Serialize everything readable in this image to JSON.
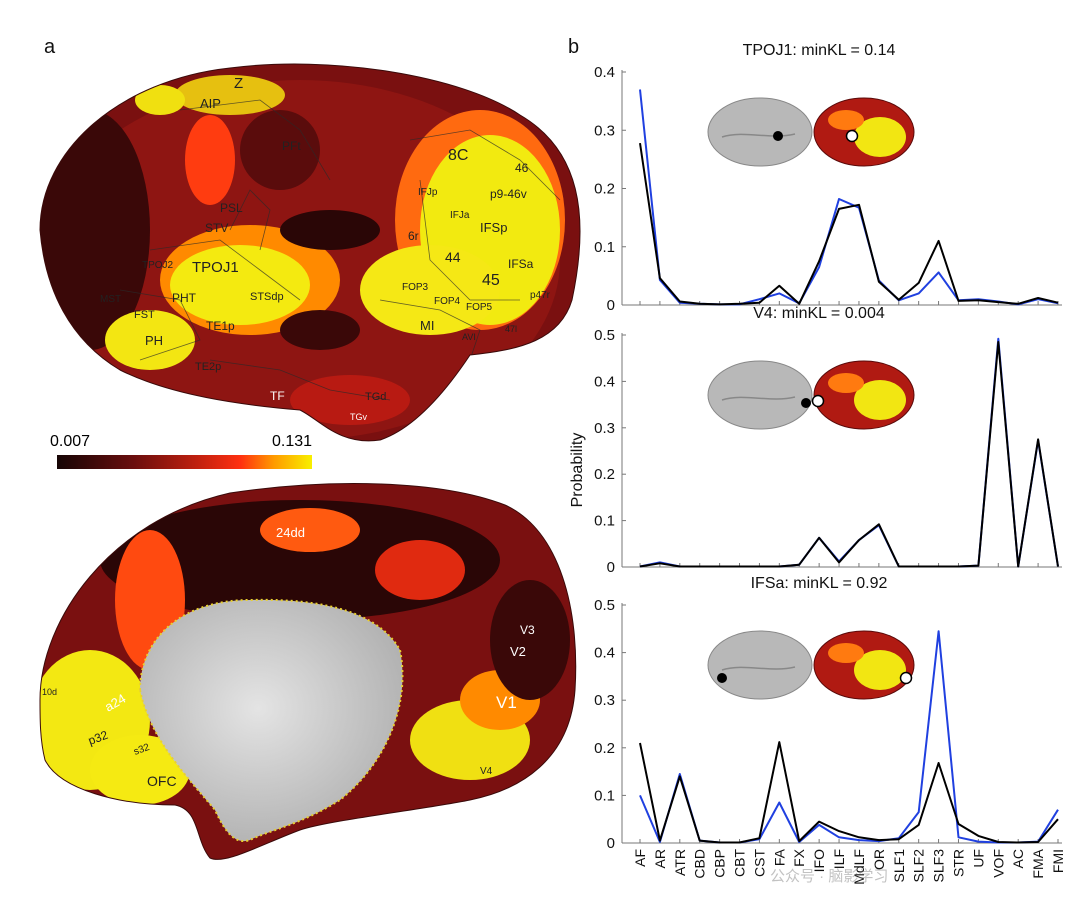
{
  "panel_labels": {
    "a": "a",
    "b": "b"
  },
  "colorbar": {
    "min_label": "0.007",
    "max_label": "0.131",
    "colors": [
      "#160505",
      "#5a0d0d",
      "#a01515",
      "#e02a10",
      "#ff8a00",
      "#ffe000",
      "#f7f000"
    ]
  },
  "lateral_regions": [
    "Z",
    "AIP",
    "PFt",
    "8C",
    "46",
    "p9-46v",
    "IFJp",
    "IFJa",
    "IFSp",
    "6r",
    "PSL",
    "STV",
    "TPOJ1",
    "TPOJ2",
    "44",
    "45",
    "IFSa",
    "MST",
    "FST",
    "PHT",
    "STSdp",
    "FOP3",
    "FOP4",
    "FOP5",
    "MI",
    "p47r",
    "47l",
    "AVI",
    "TE1p",
    "PH",
    "TE2p",
    "TF",
    "TGd",
    "TGv"
  ],
  "medial_regions": [
    "24dd",
    "V3",
    "V2",
    "V1",
    "a24",
    "p32",
    "s32",
    "OFC",
    "V4",
    "10d"
  ],
  "watermark": "公众号 · 脑影学习",
  "ylabel": "Probability",
  "tracts": [
    "AF",
    "AR",
    "ATR",
    "CBD",
    "CBP",
    "CBT",
    "CST",
    "FA",
    "FX",
    "IFO",
    "ILF",
    "MdLF",
    "OR",
    "SLF1",
    "SLF2",
    "SLF3",
    "STR",
    "UF",
    "VOF",
    "AC",
    "FMA",
    "FMI"
  ],
  "chart_data": [
    {
      "type": "line",
      "title": "TPOJ1: minKL = 0.14",
      "ylim": [
        0,
        0.4
      ],
      "yticks": [
        "0",
        "0.1",
        "0.2",
        "0.3",
        "0.4"
      ],
      "xlabel": "",
      "ylabel": "",
      "series": [
        {
          "color": "#2040e0",
          "values": [
            0.37,
            0.043,
            0.004,
            0.002,
            0.001,
            0.001,
            0.01,
            0.02,
            0.003,
            0.065,
            0.182,
            0.167,
            0.042,
            0.008,
            0.02,
            0.056,
            0.008,
            0.01,
            0.006,
            0.001,
            0.01,
            0.003
          ]
        },
        {
          "color": "#000000",
          "values": [
            0.278,
            0.046,
            0.006,
            0.002,
            0.001,
            0.002,
            0.004,
            0.033,
            0.002,
            0.075,
            0.165,
            0.172,
            0.04,
            0.009,
            0.038,
            0.11,
            0.007,
            0.008,
            0.005,
            0.002,
            0.012,
            0.004
          ]
        }
      ]
    },
    {
      "type": "line",
      "title": "V4: minKL = 0.004",
      "ylim": [
        0,
        0.5
      ],
      "yticks": [
        "0",
        "0.1",
        "0.2",
        "0.3",
        "0.4",
        "0.5"
      ],
      "xlabel": "",
      "ylabel": "",
      "series": [
        {
          "color": "#2040e0",
          "values": [
            0.001,
            0.01,
            0.001,
            0.001,
            0.001,
            0.001,
            0.001,
            0.001,
            0.005,
            0.063,
            0.012,
            0.058,
            0.09,
            0.001,
            0.001,
            0.001,
            0.001,
            0.003,
            0.492,
            0.001,
            0.273,
            0.001
          ]
        },
        {
          "color": "#000000",
          "values": [
            0.001,
            0.008,
            0.001,
            0.001,
            0.001,
            0.001,
            0.001,
            0.001,
            0.005,
            0.063,
            0.01,
            0.058,
            0.092,
            0.001,
            0.001,
            0.001,
            0.001,
            0.003,
            0.485,
            0.001,
            0.275,
            0.001
          ]
        }
      ]
    },
    {
      "type": "line",
      "title": "IFSa: minKL = 0.92",
      "ylim": [
        0,
        0.5
      ],
      "yticks": [
        "0",
        "0.1",
        "0.2",
        "0.3",
        "0.4",
        "0.5"
      ],
      "xlabel": "",
      "ylabel": "",
      "series": [
        {
          "color": "#2040e0",
          "values": [
            0.1,
            0.002,
            0.145,
            0.005,
            0.001,
            0.001,
            0.008,
            0.085,
            0.002,
            0.038,
            0.012,
            0.006,
            0.004,
            0.01,
            0.065,
            0.445,
            0.012,
            0.003,
            0.001,
            0.001,
            0.003,
            0.07
          ]
        },
        {
          "color": "#000000",
          "values": [
            0.21,
            0.005,
            0.14,
            0.005,
            0.001,
            0.001,
            0.01,
            0.212,
            0.004,
            0.045,
            0.025,
            0.012,
            0.006,
            0.008,
            0.038,
            0.168,
            0.04,
            0.015,
            0.002,
            0.001,
            0.002,
            0.05
          ]
        }
      ]
    }
  ]
}
